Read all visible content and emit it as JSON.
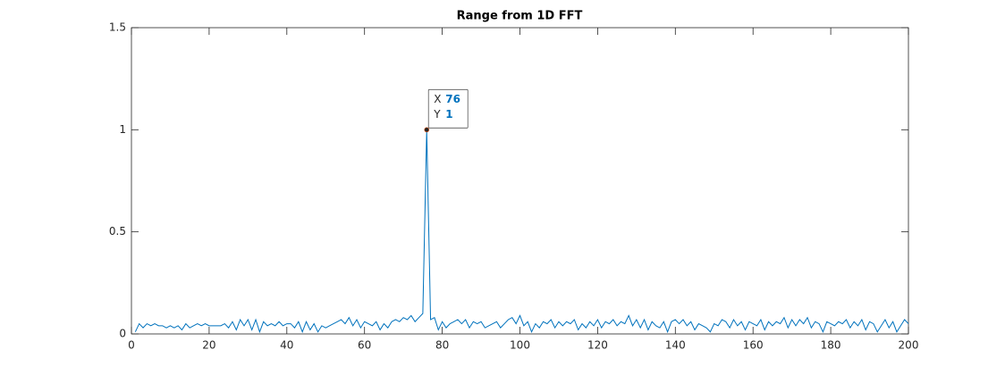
{
  "chart_data": {
    "type": "line",
    "title": "Range from 1D FFT",
    "x": [
      1,
      2,
      3,
      4,
      5,
      6,
      7,
      8,
      9,
      10,
      11,
      12,
      13,
      14,
      15,
      16,
      17,
      18,
      19,
      20,
      21,
      22,
      23,
      24,
      25,
      26,
      27,
      28,
      29,
      30,
      31,
      32,
      33,
      34,
      35,
      36,
      37,
      38,
      39,
      40,
      41,
      42,
      43,
      44,
      45,
      46,
      47,
      48,
      49,
      50,
      51,
      52,
      53,
      54,
      55,
      56,
      57,
      58,
      59,
      60,
      61,
      62,
      63,
      64,
      65,
      66,
      67,
      68,
      69,
      70,
      71,
      72,
      73,
      74,
      75,
      76,
      77,
      78,
      79,
      80,
      81,
      82,
      83,
      84,
      85,
      86,
      87,
      88,
      89,
      90,
      91,
      92,
      93,
      94,
      95,
      96,
      97,
      98,
      99,
      100,
      101,
      102,
      103,
      104,
      105,
      106,
      107,
      108,
      109,
      110,
      111,
      112,
      113,
      114,
      115,
      116,
      117,
      118,
      119,
      120,
      121,
      122,
      123,
      124,
      125,
      126,
      127,
      128,
      129,
      130,
      131,
      132,
      133,
      134,
      135,
      136,
      137,
      138,
      139,
      140,
      141,
      142,
      143,
      144,
      145,
      146,
      147,
      148,
      149,
      150,
      151,
      152,
      153,
      154,
      155,
      156,
      157,
      158,
      159,
      160,
      161,
      162,
      163,
      164,
      165,
      166,
      167,
      168,
      169,
      170,
      171,
      172,
      173,
      174,
      175,
      176,
      177,
      178,
      179,
      180,
      181,
      182,
      183,
      184,
      185,
      186,
      187,
      188,
      189,
      190,
      191,
      192,
      193,
      194,
      195,
      196,
      197,
      198,
      199,
      200
    ],
    "series": [
      {
        "color": "#0072bd",
        "values": [
          0.01,
          0.05,
          0.03,
          0.05,
          0.04,
          0.05,
          0.04,
          0.04,
          0.03,
          0.04,
          0.03,
          0.04,
          0.02,
          0.05,
          0.03,
          0.04,
          0.05,
          0.04,
          0.05,
          0.04,
          0.04,
          0.04,
          0.04,
          0.05,
          0.03,
          0.06,
          0.02,
          0.07,
          0.04,
          0.07,
          0.02,
          0.07,
          0.01,
          0.06,
          0.04,
          0.05,
          0.04,
          0.06,
          0.04,
          0.05,
          0.05,
          0.03,
          0.06,
          0.01,
          0.06,
          0.02,
          0.05,
          0.01,
          0.04,
          0.03,
          0.04,
          0.05,
          0.06,
          0.07,
          0.05,
          0.08,
          0.04,
          0.07,
          0.03,
          0.06,
          0.05,
          0.04,
          0.06,
          0.02,
          0.05,
          0.03,
          0.06,
          0.07,
          0.06,
          0.08,
          0.07,
          0.09,
          0.06,
          0.08,
          0.1,
          1,
          0.07,
          0.08,
          0.02,
          0.06,
          0.03,
          0.05,
          0.06,
          0.07,
          0.05,
          0.07,
          0.03,
          0.06,
          0.05,
          0.06,
          0.03,
          0.04,
          0.05,
          0.06,
          0.03,
          0.05,
          0.07,
          0.08,
          0.05,
          0.09,
          0.04,
          0.06,
          0.01,
          0.05,
          0.03,
          0.06,
          0.05,
          0.07,
          0.03,
          0.06,
          0.04,
          0.06,
          0.05,
          0.07,
          0.02,
          0.05,
          0.03,
          0.06,
          0.04,
          0.07,
          0.03,
          0.06,
          0.05,
          0.07,
          0.04,
          0.06,
          0.05,
          0.09,
          0.04,
          0.07,
          0.03,
          0.07,
          0.02,
          0.06,
          0.04,
          0.03,
          0.06,
          0.01,
          0.06,
          0.07,
          0.05,
          0.07,
          0.04,
          0.06,
          0.02,
          0.05,
          0.04,
          0.03,
          0.01,
          0.05,
          0.04,
          0.07,
          0.06,
          0.03,
          0.07,
          0.04,
          0.06,
          0.02,
          0.06,
          0.05,
          0.04,
          0.07,
          0.02,
          0.06,
          0.04,
          0.06,
          0.05,
          0.08,
          0.03,
          0.07,
          0.04,
          0.07,
          0.05,
          0.08,
          0.03,
          0.06,
          0.05,
          0.01,
          0.06,
          0.05,
          0.04,
          0.06,
          0.05,
          0.07,
          0.03,
          0.06,
          0.04,
          0.07,
          0.02,
          0.06,
          0.05,
          0.01,
          0.04,
          0.07,
          0.03,
          0.06,
          0.01,
          0.04,
          0.07,
          0.05
        ]
      }
    ],
    "xlim": [
      0,
      200
    ],
    "xticks": [
      0,
      20,
      40,
      60,
      80,
      100,
      120,
      140,
      160,
      180,
      200
    ],
    "ylim": [
      0,
      1.5
    ],
    "yticks": [
      0,
      0.5,
      1,
      1.5
    ],
    "datatip": {
      "x_label": "X",
      "x": 76,
      "y_label": "Y",
      "y": 1
    }
  }
}
